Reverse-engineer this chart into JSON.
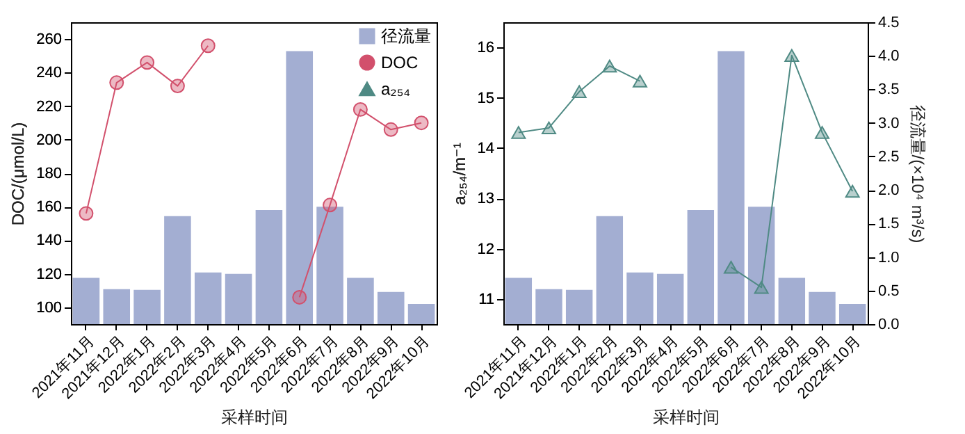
{
  "chart_data": [
    {
      "type": "bar",
      "categories": [
        "2021年11月",
        "2021年12月",
        "2022年1月",
        "2022年2月",
        "2022年3月",
        "2022年4月",
        "2022年5月",
        "2022年6月",
        "2022年7月",
        "2022年8月",
        "2022年9月",
        "2022年10月"
      ],
      "xlabel": "采样时间",
      "ylabel": "DOC/(μmol/L)",
      "ylim": [
        90,
        270
      ],
      "yticks": [
        100,
        120,
        140,
        160,
        180,
        200,
        220,
        240,
        260
      ],
      "y2lim": [
        0,
        4.5
      ],
      "legend": "top right",
      "series": [
        {
          "name": "径流量",
          "type": "bar",
          "axis": "y2",
          "color": "#a3aed2",
          "values": [
            0.69,
            0.52,
            0.51,
            1.61,
            0.77,
            0.75,
            1.7,
            4.07,
            1.75,
            0.69,
            0.48,
            0.3
          ]
        },
        {
          "name": "DOC",
          "type": "line",
          "marker": "circle",
          "color": "#d2506c",
          "values": [
            156,
            234,
            246,
            232,
            256,
            null,
            null,
            106,
            161,
            218,
            206,
            210
          ]
        },
        {
          "name": "a₂₅₄",
          "type": "line",
          "marker": "triangle",
          "color": "#4f8a84",
          "values": [
            null,
            null,
            null,
            null,
            null,
            null,
            null,
            null,
            null,
            null,
            null,
            null
          ]
        }
      ]
    },
    {
      "type": "bar",
      "categories": [
        "2021年11月",
        "2021年12月",
        "2022年1月",
        "2022年2月",
        "2022年3月",
        "2022年4月",
        "2022年5月",
        "2022年6月",
        "2022年7月",
        "2022年8月",
        "2022年9月",
        "2022年10月"
      ],
      "xlabel": "采样时间",
      "ylabel": "a₂₅₄/m⁻¹",
      "y2label": "径流量/(×10⁴ m³/s)",
      "ylim": [
        10.5,
        16.5
      ],
      "yticks": [
        11,
        12,
        13,
        14,
        15,
        16
      ],
      "y2lim": [
        0,
        4.5
      ],
      "y2ticks": [
        {
          "value": 0,
          "label": "0.0"
        },
        0.5,
        {
          "value": 1,
          "label": "1.0"
        },
        1.5,
        {
          "value": 2,
          "label": "2.0"
        },
        2.5,
        {
          "value": 3,
          "label": "3.0"
        },
        3.5,
        {
          "value": 4,
          "label": "4.0"
        },
        4.5
      ],
      "series": [
        {
          "type": "bar",
          "axis": "y2",
          "color": "#a3aed2",
          "values": [
            0.69,
            0.52,
            0.51,
            1.61,
            0.77,
            0.75,
            1.7,
            4.07,
            1.75,
            0.69,
            0.48,
            0.3
          ]
        },
        {
          "type": "line",
          "marker": "triangle",
          "color": "#4f8a84",
          "values": [
            14.31,
            14.4,
            15.12,
            15.63,
            15.33,
            null,
            null,
            11.63,
            11.23,
            15.84,
            14.31,
            13.14
          ]
        }
      ]
    }
  ]
}
